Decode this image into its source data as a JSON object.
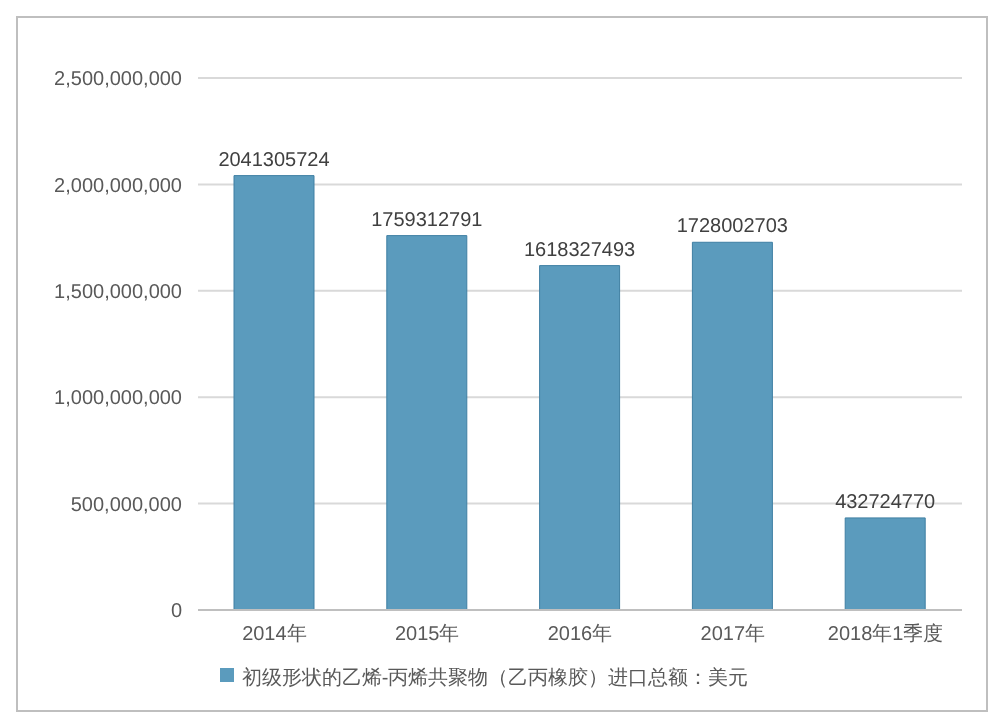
{
  "chart_data": {
    "type": "bar",
    "categories": [
      "2014年",
      "2015年",
      "2016年",
      "2017年",
      "2018年1季度"
    ],
    "series": [
      {
        "name": "初级形状的乙烯-丙烯共聚物（乙丙橡胶）进口总额：美元",
        "color": "#5b9bbd",
        "values": [
          2041305724,
          1759312791,
          1618327493,
          1728002703,
          432724770
        ]
      }
    ],
    "ylim": [
      0,
      2500000000
    ],
    "yticks": [
      0,
      {
        "value": 500000000,
        "label": "500,000,000"
      },
      {
        "value": 1000000000,
        "label": "1,000,000,000"
      },
      {
        "value": 1500000000,
        "label": "1,500,000,000"
      },
      {
        "value": 2000000000,
        "label": "2,000,000,000"
      },
      {
        "value": 2500000000,
        "label": "2,500,000,000"
      }
    ],
    "grid": "y",
    "legend": "bottom",
    "data_labels": true
  }
}
